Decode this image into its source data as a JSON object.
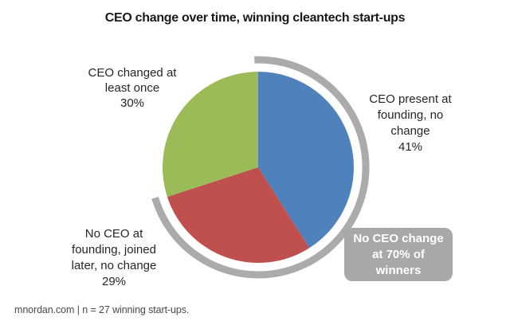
{
  "title": "CEO change over time, winning cleantech start-ups",
  "footer": "mnordan.com | n = 27 winning start-ups.",
  "labels": {
    "green": "CEO changed at\nleast once\n30%",
    "blue": "CEO present at\nfounding, no\nchange\n41%",
    "red": "No CEO at\nfounding, joined\nlater, no change\n29%"
  },
  "callout": {
    "text": "No CEO change\nat 70% of\nwinners",
    "bg": "#A8A8A8",
    "text_color": "#FFFFFF"
  },
  "chart_data": {
    "type": "pie",
    "title": "CEO change over time, winning cleantech start-ups",
    "start_angle": "12 o'clock, clockwise",
    "slices": [
      {
        "key": "ceo-present-at-founding",
        "label": "CEO present at founding, no change",
        "value": 41,
        "color": "#4F81BD"
      },
      {
        "key": "no-ceo-at-founding",
        "label": "No CEO at founding, joined later, no change",
        "value": 29,
        "color": "#C0504D"
      },
      {
        "key": "ceo-changed",
        "label": "CEO changed at least once",
        "value": 30,
        "color": "#9BBB59"
      }
    ],
    "annotation": {
      "text": "No CEO change at 70% of winners",
      "covers_percent": 70,
      "arc_color": "#ABABAB"
    },
    "source": "mnordan.com",
    "sample_note": "n = 27 winning start-ups"
  }
}
